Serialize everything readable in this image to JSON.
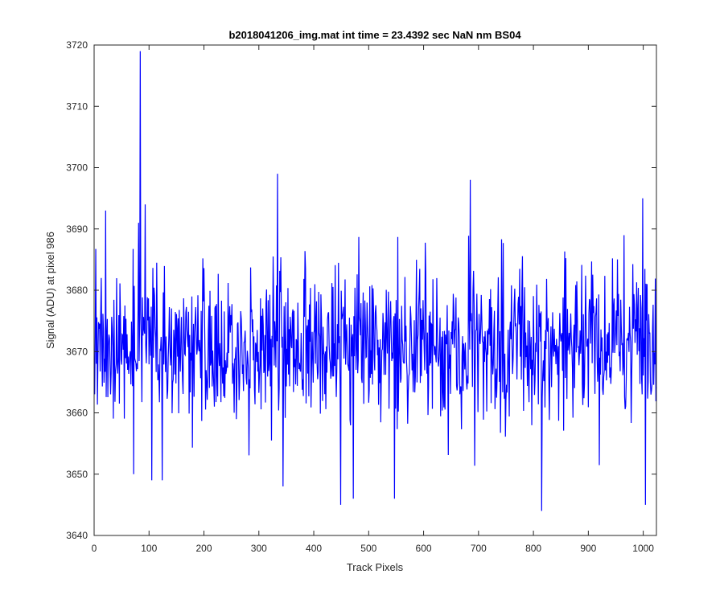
{
  "chart_data": {
    "type": "line",
    "title": "b2018041206_img.mat int time = 23.4392 sec  NaN nm BS04",
    "xlabel": "Track Pixels",
    "ylabel": "Signal (ADU) at pixel 986",
    "xlim": [
      0,
      1024
    ],
    "ylim": [
      3640,
      3720
    ],
    "xticks": [
      "0",
      "100",
      "200",
      "300",
      "400",
      "500",
      "600",
      "700",
      "800",
      "900",
      "1000"
    ],
    "yticks": [
      "3640",
      "3650",
      "3660",
      "3670",
      "3680",
      "3690",
      "3700",
      "3710",
      "3720"
    ],
    "grid": false,
    "box": true,
    "line_color": "#0000ff",
    "series": [
      {
        "mean": 3671,
        "noise_sd": 6.5,
        "n_points": 1024,
        "noted_points": [
          [
            3,
            3668
          ],
          [
            12,
            3682
          ],
          [
            20,
            3693
          ],
          [
            71,
            3650
          ],
          [
            80,
            3691
          ],
          [
            83,
            3719
          ],
          [
            92,
            3694
          ],
          [
            104,
            3649
          ],
          [
            123,
            3649
          ],
          [
            333,
            3699
          ],
          [
            343,
            3648
          ],
          [
            448,
            3645
          ],
          [
            471,
            3646
          ],
          [
            546,
            3646
          ],
          [
            684,
            3698
          ],
          [
            814,
            3644
          ],
          [
            998,
            3695
          ],
          [
            1003,
            3645
          ]
        ]
      }
    ]
  }
}
